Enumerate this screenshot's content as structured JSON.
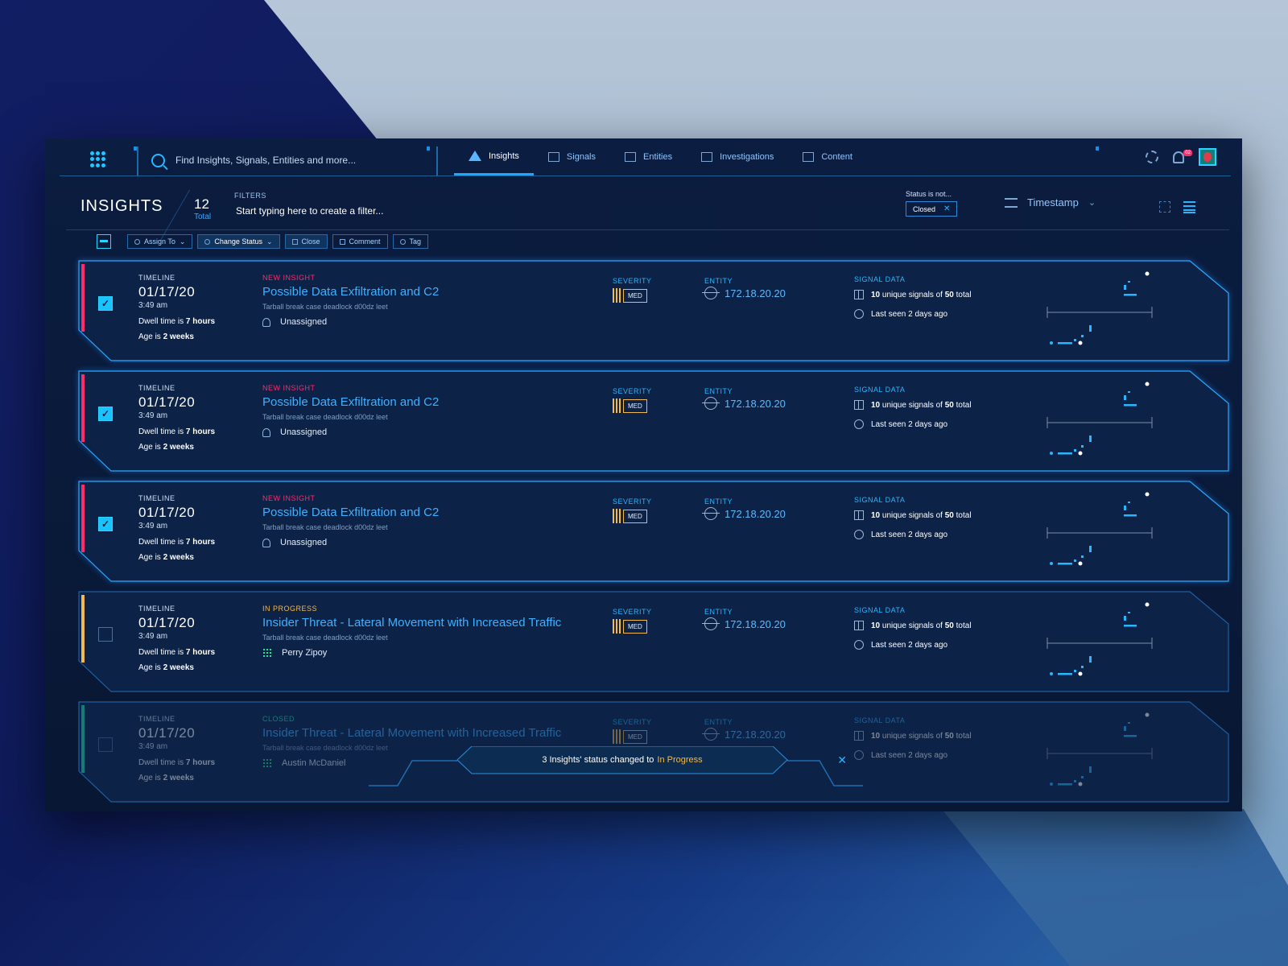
{
  "nav": {
    "search_placeholder": "Find Insights, Signals, Entities and more...",
    "tabs": [
      {
        "label": "Insights",
        "active": true
      },
      {
        "label": "Signals"
      },
      {
        "label": "Entities"
      },
      {
        "label": "Investigations"
      },
      {
        "label": "Content"
      }
    ],
    "notification_count": "02"
  },
  "header": {
    "title": "INSIGHTS",
    "total_count": "12",
    "total_label": "Total",
    "filters_label": "FILTERS",
    "filters_placeholder": "Start typing here to create a filter...",
    "status_filter_label": "Status is not...",
    "status_filter_value": "Closed",
    "sort_label": "Timestamp"
  },
  "toolbar": {
    "assign": "Assign To",
    "change_status": "Change Status",
    "close": "Close",
    "comment": "Comment",
    "tag": "Tag"
  },
  "labels": {
    "timeline": "TIMELINE",
    "severity": "SEVERITY",
    "entity": "ENTITY",
    "signal_data": "SIGNAL DATA",
    "dwell_prefix": "Dwell time is ",
    "age_prefix": "Age is ",
    "signals_suffix_a": " unique signals of ",
    "signals_suffix_b": " total",
    "last_seen": "Last seen 2 days ago"
  },
  "insights": [
    {
      "date": "01/17/20",
      "time": "3:49 am",
      "dwell": "7 hours",
      "age": "2 weeks",
      "status": "NEW INSIGHT",
      "status_color": "#ff2b6b",
      "title": "Possible Data Exfiltration and C2",
      "subtitle": "Tarball break case deadlock d00dz leet",
      "assignee": "Unassigned",
      "severity": "MED",
      "entity": "172.18.20.20",
      "unique_signals": "10",
      "total_signals": "50",
      "checked": true
    },
    {
      "date": "01/17/20",
      "time": "3:49 am",
      "dwell": "7 hours",
      "age": "2 weeks",
      "status": "NEW INSIGHT",
      "status_color": "#ff2b6b",
      "title": "Possible Data Exfiltration and C2",
      "subtitle": "Tarball break case deadlock d00dz leet",
      "assignee": "Unassigned",
      "severity": "MED",
      "entity": "172.18.20.20",
      "unique_signals": "10",
      "total_signals": "50",
      "checked": true
    },
    {
      "date": "01/17/20",
      "time": "3:49 am",
      "dwell": "7 hours",
      "age": "2 weeks",
      "status": "NEW INSIGHT",
      "status_color": "#ff2b6b",
      "title": "Possible Data Exfiltration and C2",
      "subtitle": "Tarball break case deadlock d00dz leet",
      "assignee": "Unassigned",
      "severity": "MED",
      "entity": "172.18.20.20",
      "unique_signals": "10",
      "total_signals": "50",
      "checked": true
    },
    {
      "date": "01/17/20",
      "time": "3:49 am",
      "dwell": "7 hours",
      "age": "2 weeks",
      "status": "IN PROGRESS",
      "status_color": "#f5b84a",
      "title": "Insider Threat - Lateral Movement with Increased Traffic",
      "subtitle": "Tarball break case deadlock d00dz leet",
      "assignee": "Perry Zipoy",
      "severity": "MED",
      "entity": "172.18.20.20",
      "unique_signals": "10",
      "total_signals": "50",
      "checked": false
    },
    {
      "date": "01/17/20",
      "time": "3:49 am",
      "dwell": "7 hours",
      "age": "2 weeks",
      "status": "CLOSED",
      "status_color": "#1ee8b0",
      "title": "Insider Threat - Lateral Movement with Increased Traffic",
      "subtitle": "Tarball break case deadlock d00dz leet",
      "assignee": "Austin McDaniel",
      "severity": "MED",
      "entity": "172.18.20.20",
      "unique_signals": "10",
      "total_signals": "50",
      "checked": false
    }
  ],
  "toast": {
    "message": "3 Insights' status changed to",
    "status": "In Progress"
  },
  "colors": {
    "accent": "#1ea7ff",
    "new": "#ff2b6b",
    "progress": "#f5b84a",
    "closed": "#1ee8b0"
  }
}
